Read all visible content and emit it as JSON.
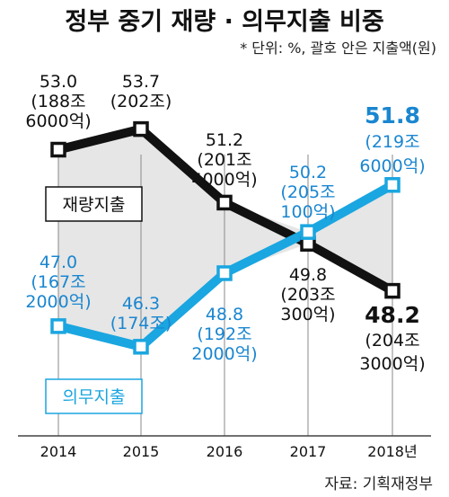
{
  "title": "정부 중기 재량 · 의무지출 비중",
  "unit_note": "* 단위: %, 괄호 안은 지출액(원)",
  "source": "자료: 기획재정부",
  "chart_data": {
    "type": "line",
    "categories": [
      "2014",
      "2015",
      "2016",
      "2017",
      "2018년"
    ],
    "series": [
      {
        "name": "재량지출",
        "color": "#111111",
        "values": [
          53.0,
          53.7,
          51.2,
          49.8,
          48.2
        ],
        "value_labels": [
          "53.0",
          "53.7",
          "51.2",
          "49.8",
          "48.2"
        ],
        "amount_labels": [
          [
            "(188조",
            "6000억)"
          ],
          [
            "(202조)"
          ],
          [
            "(201조",
            "4000억)"
          ],
          [
            "(203조",
            "300억)"
          ],
          [
            "(204조",
            "3000억)"
          ]
        ]
      },
      {
        "name": "의무지출",
        "color": "#1aa6e0",
        "values": [
          47.0,
          46.3,
          48.8,
          50.2,
          51.8
        ],
        "value_labels": [
          "47.0",
          "46.3",
          "48.8",
          "50.2",
          "51.8"
        ],
        "amount_labels": [
          [
            "(167조",
            "2000억)"
          ],
          [
            "(174조)"
          ],
          [
            "(192조",
            "2000억)"
          ],
          [
            "(205조",
            "100억)"
          ],
          [
            "(219조",
            "6000억)"
          ]
        ]
      }
    ],
    "grid": false,
    "legend": "inline labels"
  }
}
